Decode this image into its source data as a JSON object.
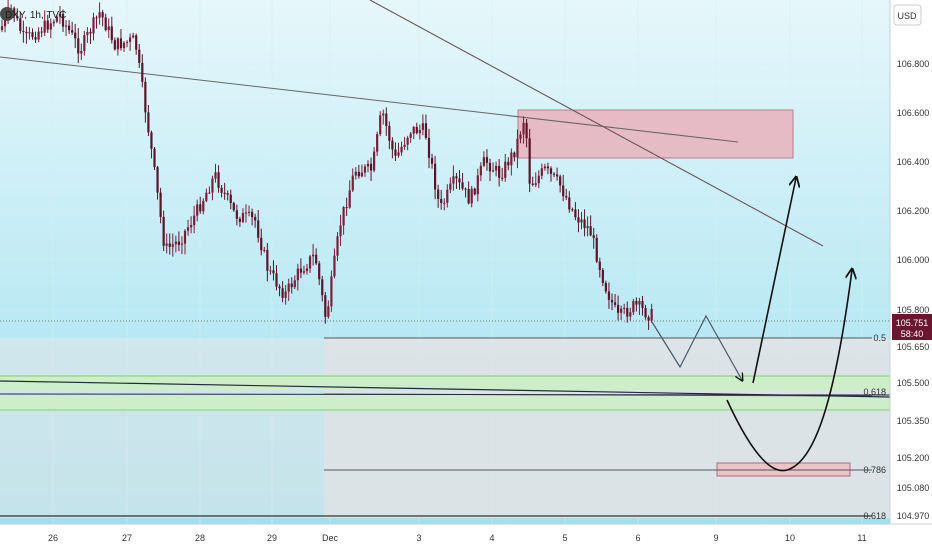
{
  "header": {
    "symbol_label": "DXY, 1h, TVC"
  },
  "price_axis": {
    "currency_label": "USD",
    "ticks": [
      "106.800",
      "106.600",
      "106.400",
      "106.200",
      "106.000",
      "105.800",
      "105.650",
      "105.500",
      "105.350",
      "105.200",
      "105.080",
      "104.970"
    ],
    "current_price": "105.751",
    "countdown": "58:40"
  },
  "time_axis": {
    "labels": [
      "26",
      "27",
      "28",
      "29",
      "Dec",
      "3",
      "4",
      "5",
      "6",
      "9",
      "10",
      "11"
    ]
  },
  "fib_labels": {
    "level_05": "0.5",
    "level_0618_mid": "0.618",
    "level_0786": "0.786",
    "level_0618_bottom": "0.618"
  },
  "colors": {
    "bull_candle": "#7a1f3a",
    "bear_candle": "#5a1428",
    "plot_background_top": "#e6f7fb",
    "plot_background_bottom": "#9fe0ef",
    "supply_zone": "#e7b9c3",
    "demand_zone": "#c6ecc4",
    "fib_zone": "#d9dee2",
    "trendline": "#5a5a5a"
  },
  "chart_data": {
    "type": "candlestick",
    "timeframe": "1h",
    "ylim": [
      104.97,
      107.0
    ],
    "current_price": 105.751,
    "session_closes": [
      {
        "x": "26",
        "y": 106.85
      },
      {
        "x": "26",
        "y": 106.6
      },
      {
        "x": "27",
        "y": 106.75
      },
      {
        "x": "27",
        "y": 106.2
      },
      {
        "x": "28",
        "y": 106.25
      },
      {
        "x": "28",
        "y": 106.3
      },
      {
        "x": "29",
        "y": 105.9
      },
      {
        "x": "29",
        "y": 105.75
      },
      {
        "x": "Dec",
        "y": 105.75
      },
      {
        "x": "Dec",
        "y": 106.3
      },
      {
        "x": "3",
        "y": 106.55
      },
      {
        "x": "3",
        "y": 106.25
      },
      {
        "x": "4",
        "y": 106.5
      },
      {
        "x": "4",
        "y": 106.65
      },
      {
        "x": "5",
        "y": 106.25
      },
      {
        "x": "5",
        "y": 106.05
      },
      {
        "x": "6",
        "y": 105.76
      },
      {
        "x": "6",
        "y": 105.75
      }
    ],
    "zones": [
      {
        "kind": "supply",
        "y_top": 106.61,
        "y_bottom": 106.41
      },
      {
        "kind": "demand",
        "y_top": 105.54,
        "y_bottom": 105.43
      },
      {
        "kind": "target",
        "y_top": 105.19,
        "y_bottom": 105.15
      }
    ],
    "fib_levels": [
      {
        "label": "0.5",
        "y": 105.64
      },
      {
        "label": "0.618",
        "y": 105.47
      },
      {
        "label": "0.786",
        "y": 105.19
      },
      {
        "label": "0.618",
        "y": 104.97
      }
    ],
    "grid": true
  }
}
